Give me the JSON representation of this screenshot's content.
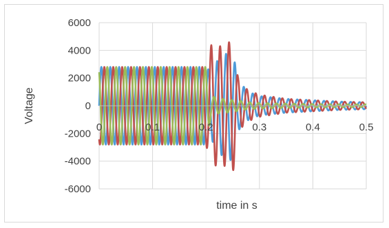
{
  "chart_data": {
    "type": "line",
    "title": "",
    "xlabel": "time in s",
    "ylabel": "Voltage",
    "xlim": [
      0,
      0.5
    ],
    "ylim": [
      -6000,
      6000
    ],
    "x_ticks": [
      0,
      0.1,
      0.2,
      0.3,
      0.4,
      0.5
    ],
    "x_tick_labels": [
      "0",
      "0.1",
      "0.2",
      "0.3",
      "0.4",
      "0.5"
    ],
    "y_ticks": [
      6000,
      4000,
      2000,
      0,
      -2000,
      -4000,
      -6000
    ],
    "y_tick_labels": [
      "6000",
      "4000",
      "2000",
      "0",
      "-2000",
      "-4000",
      "-6000"
    ],
    "grid": true,
    "legend": "none",
    "description_of_signal": {
      "steady_amplitude": 2800,
      "fault_time": 0.2,
      "frequency_hz": 60
    },
    "series": [
      {
        "color": "#4f9bd9",
        "x": [
          0,
          0.1,
          0.2,
          0.21,
          0.22,
          0.23,
          0.24,
          0.25,
          0.26,
          0.27,
          0.28,
          0.3,
          0.35,
          0.4,
          0.45,
          0.5
        ],
        "amplitude": [
          2800,
          2800,
          2800,
          2400,
          3200,
          3600,
          3800,
          4000,
          1800,
          1400,
          1000,
          700,
          500,
          400,
          300,
          250
        ]
      },
      {
        "color": "#c0504d",
        "x": [
          0,
          0.1,
          0.2,
          0.21,
          0.22,
          0.23,
          0.24,
          0.25,
          0.26,
          0.27,
          0.28,
          0.3,
          0.35,
          0.4,
          0.45,
          0.5
        ],
        "amplitude": [
          2800,
          2800,
          2800,
          4400,
          4300,
          4300,
          4400,
          5000,
          2000,
          1400,
          1100,
          800,
          500,
          400,
          300,
          250
        ]
      },
      {
        "color": "#9bbb59",
        "x": [
          0,
          0.1,
          0.2,
          0.21,
          0.22,
          0.23,
          0.24,
          0.25,
          0.26,
          0.27,
          0.28,
          0.3,
          0.35,
          0.4,
          0.45,
          0.5
        ],
        "amplitude": [
          2800,
          2800,
          2800,
          700,
          600,
          500,
          500,
          400,
          400,
          300,
          250,
          200,
          150,
          120,
          100,
          100
        ]
      }
    ]
  }
}
